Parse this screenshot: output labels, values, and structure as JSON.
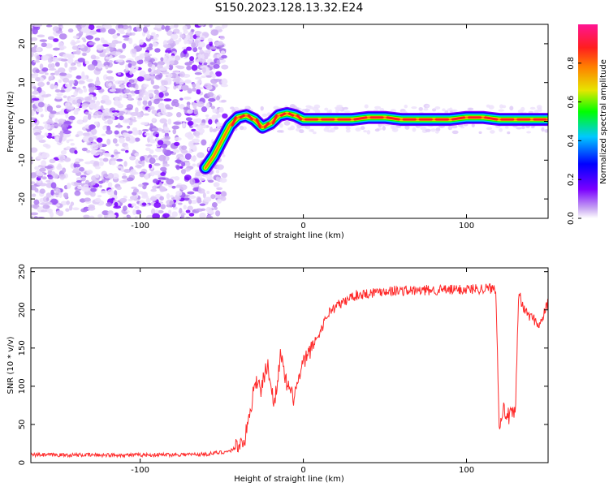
{
  "title": "S150.2023.128.13.32.E24",
  "chart_data": [
    {
      "type": "heatmap",
      "xlabel": "Height of straight line (km)",
      "ylabel": "Frequency (Hz)",
      "xlim": [
        -167,
        150
      ],
      "ylim": [
        -25,
        25
      ],
      "xticks": [
        -100,
        0,
        100
      ],
      "yticks": [
        -20,
        -10,
        0,
        10,
        20
      ],
      "grid": false,
      "colorbar": {
        "label": "Normalized spectral amplitude",
        "range": [
          0,
          1
        ],
        "ticks": [
          "0.0",
          "0.2",
          "0.4",
          "0.6",
          "0.8"
        ],
        "colors": [
          "#ffffff",
          "#c9a8f2",
          "#7a00ff",
          "#0000ff",
          "#00c8ff",
          "#00ff00",
          "#e6e600",
          "#ff8000",
          "#ff1e1e",
          "#ff1493"
        ]
      },
      "ridge": {
        "x": [
          -60,
          -55,
          -50,
          -45,
          -40,
          -35,
          -30,
          -25,
          -20,
          -15,
          -10,
          -5,
          0,
          10,
          20,
          30,
          40,
          50,
          60,
          70,
          80,
          90,
          100,
          110,
          120,
          130,
          140,
          150
        ],
        "y": [
          -12,
          -9,
          -5,
          -1,
          1,
          1.5,
          0.5,
          -1.5,
          -0.5,
          1.5,
          2,
          1.5,
          0.5,
          0.5,
          0.5,
          0.5,
          1,
          1,
          0.5,
          0.5,
          0.5,
          0.5,
          1,
          1,
          0.5,
          0.5,
          0.5,
          0.5
        ]
      },
      "noise_region_x": [
        -167,
        -48
      ]
    },
    {
      "type": "line",
      "xlabel": "Height of straight line (km)",
      "ylabel": "SNR (10 * v/v)",
      "xlim": [
        -167,
        150
      ],
      "ylim": [
        0,
        255
      ],
      "xticks": [
        -100,
        0,
        100
      ],
      "yticks": [
        0,
        50,
        100,
        150,
        200,
        250
      ],
      "grid": false,
      "series": [
        {
          "color": "#ff2a2a",
          "x": [
            -167,
            -100,
            -60,
            -45,
            -36,
            -32,
            -30,
            -26,
            -22,
            -18,
            -14,
            -10,
            -6,
            0,
            5,
            10,
            15,
            20,
            25,
            30,
            40,
            50,
            60,
            70,
            80,
            90,
            100,
            110,
            118,
            120,
            122,
            126,
            130,
            132,
            135,
            140,
            145,
            150
          ],
          "y": [
            10,
            10,
            11,
            15,
            30,
            70,
            110,
            95,
            130,
            75,
            140,
            100,
            85,
            130,
            150,
            170,
            195,
            205,
            210,
            218,
            222,
            225,
            225,
            225,
            226,
            226,
            227,
            228,
            228,
            50,
            70,
            60,
            65,
            225,
            200,
            190,
            180,
            210
          ]
        }
      ]
    }
  ]
}
